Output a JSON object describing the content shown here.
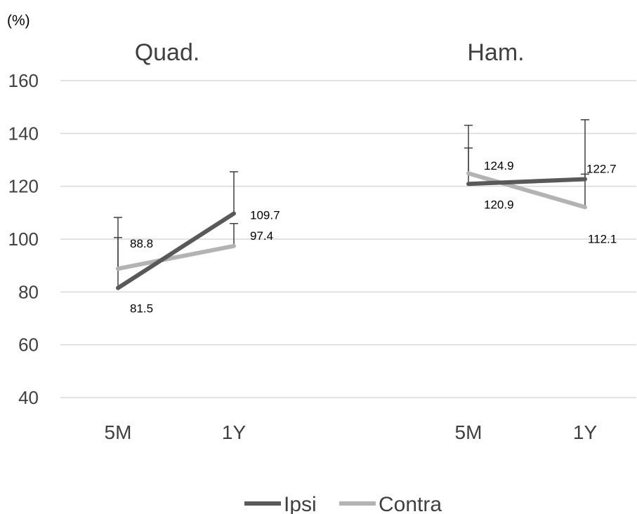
{
  "chart_data": {
    "type": "line",
    "unit_label": "(%)",
    "ylim": [
      40,
      160
    ],
    "yticks": [
      40,
      60,
      80,
      100,
      120,
      140,
      160
    ],
    "grid": true,
    "legend_position": "bottom",
    "colors": {
      "Ipsi": "#595959",
      "Contra": "#b3b3b3",
      "grid": "#d9d9d9",
      "error_bar": "#404040"
    },
    "panels": [
      {
        "title": "Quad.",
        "categories": [
          "5M",
          "1Y"
        ],
        "series": [
          {
            "name": "Ipsi",
            "values": [
              81.5,
              109.7
            ],
            "error_upper": [
              100.6,
              125.5
            ]
          },
          {
            "name": "Contra",
            "values": [
              88.8,
              97.4
            ],
            "error_upper": [
              108.2,
              105.9
            ]
          }
        ]
      },
      {
        "title": "Ham.",
        "categories": [
          "5M",
          "1Y"
        ],
        "series": [
          {
            "name": "Ipsi",
            "values": [
              120.9,
              122.7
            ],
            "error_upper": [
              134.5,
              145.2
            ]
          },
          {
            "name": "Contra",
            "values": [
              124.9,
              112.1
            ],
            "error_upper": [
              143.1,
              124.6
            ]
          }
        ]
      }
    ],
    "legend": [
      "Ipsi",
      "Contra"
    ]
  }
}
